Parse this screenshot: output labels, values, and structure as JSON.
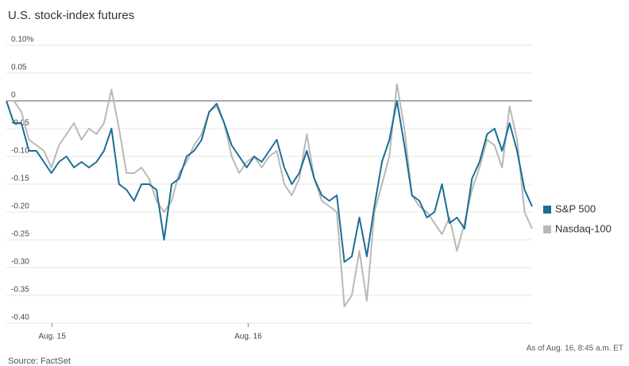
{
  "chart_data": {
    "type": "line",
    "title": "U.S. stock-index futures",
    "note": "As of Aug. 16, 8:45 a.m. ET",
    "source": "Source: FactSet",
    "xlim": [
      0,
      70
    ],
    "xticks": [
      {
        "value": 6.1,
        "label": "Aug. 15"
      },
      {
        "value": 32.2,
        "label": "Aug. 16"
      }
    ],
    "ylim": [
      -0.4,
      0.1
    ],
    "yticks": [
      {
        "value": 0.1,
        "label": "0.10%"
      },
      0.05,
      0,
      -0.05,
      {
        "value": -0.1,
        "label": "-0.10"
      },
      -0.15,
      {
        "value": -0.2,
        "label": "-0.20"
      },
      -0.25,
      {
        "value": -0.3,
        "label": "-0.30"
      },
      -0.35,
      {
        "value": -0.4,
        "label": "-0.40"
      }
    ],
    "grid": true,
    "legend": "right",
    "series": [
      {
        "name": "S&P 500",
        "color": "#1a6e96",
        "values": [
          0,
          -0.04,
          -0.04,
          -0.09,
          -0.09,
          -0.11,
          -0.13,
          -0.11,
          -0.1,
          -0.12,
          -0.11,
          -0.12,
          -0.11,
          -0.09,
          -0.05,
          -0.15,
          -0.16,
          -0.18,
          -0.15,
          -0.15,
          -0.16,
          -0.25,
          -0.15,
          -0.14,
          -0.1,
          -0.09,
          -0.07,
          -0.02,
          -0.005,
          -0.04,
          -0.08,
          -0.1,
          -0.12,
          -0.1,
          -0.11,
          -0.09,
          -0.07,
          -0.12,
          -0.15,
          -0.13,
          -0.09,
          -0.14,
          -0.17,
          -0.18,
          -0.17,
          -0.29,
          -0.28,
          -0.21,
          -0.28,
          -0.19,
          -0.11,
          -0.07,
          0,
          -0.08,
          -0.17,
          -0.18,
          -0.21,
          -0.2,
          -0.15,
          -0.22,
          -0.21,
          -0.23,
          -0.14,
          -0.11,
          -0.06,
          -0.05,
          -0.09,
          -0.04,
          -0.09,
          -0.16,
          -0.19
        ]
      },
      {
        "name": "Nasdaq-100",
        "color": "#b8b8b8",
        "values": [
          0,
          0,
          -0.02,
          -0.07,
          -0.08,
          -0.09,
          -0.12,
          -0.08,
          -0.06,
          -0.04,
          -0.07,
          -0.05,
          -0.06,
          -0.04,
          0.02,
          -0.05,
          -0.13,
          -0.13,
          -0.12,
          -0.14,
          -0.18,
          -0.2,
          -0.18,
          -0.13,
          -0.11,
          -0.08,
          -0.06,
          -0.02,
          -0.01,
          -0.04,
          -0.1,
          -0.13,
          -0.11,
          -0.1,
          -0.12,
          -0.1,
          -0.09,
          -0.15,
          -0.17,
          -0.14,
          -0.06,
          -0.14,
          -0.18,
          -0.19,
          -0.2,
          -0.37,
          -0.35,
          -0.27,
          -0.36,
          -0.2,
          -0.15,
          -0.1,
          0.03,
          -0.05,
          -0.17,
          -0.19,
          -0.2,
          -0.22,
          -0.24,
          -0.21,
          -0.27,
          -0.22,
          -0.16,
          -0.12,
          -0.07,
          -0.08,
          -0.12,
          -0.01,
          -0.07,
          -0.2,
          -0.23
        ]
      }
    ]
  }
}
